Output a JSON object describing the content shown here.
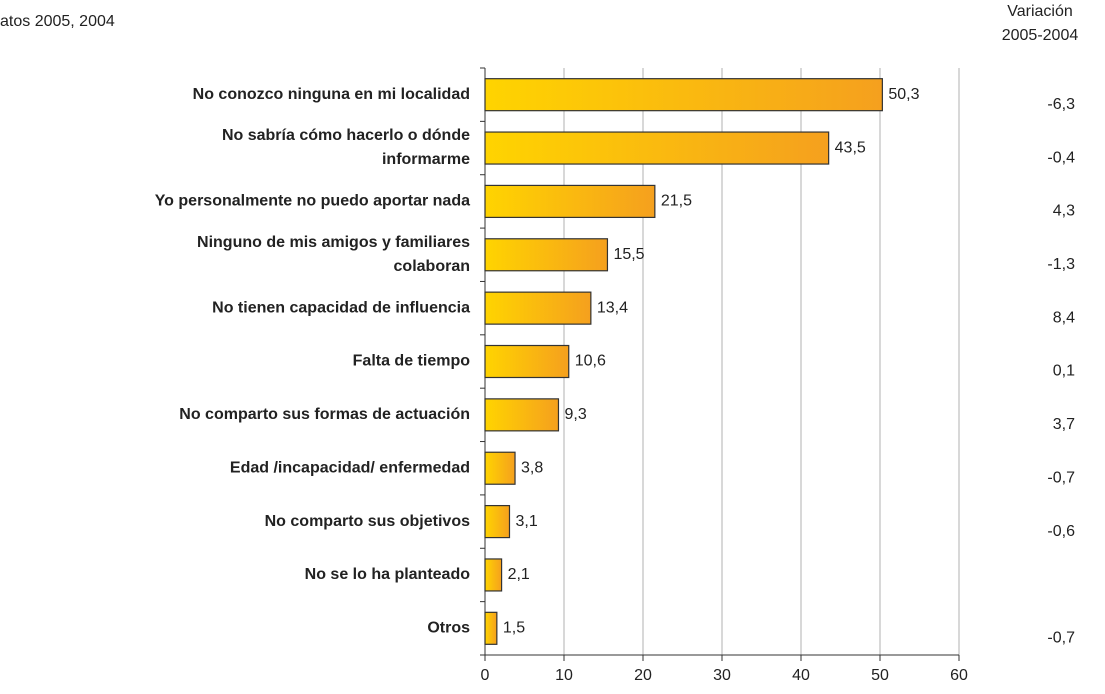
{
  "chart_data": {
    "type": "bar",
    "orientation": "horizontal",
    "subtitle": "atos 2005, 2004",
    "categories": [
      "No conozco ninguna en mi localidad",
      "No sabría cómo hacerlo o dónde\ninformarme",
      "Yo personalmente no puedo aportar nada",
      "Ninguno de mis amigos y familiares\ncolaboran",
      "No tienen capacidad de influencia",
      "Falta de tiempo",
      "No comparto sus formas de actuación",
      "Edad /incapacidad/ enfermedad",
      "No comparto sus objetivos",
      "No se lo ha planteado",
      "Otros"
    ],
    "values": [
      50.3,
      43.5,
      21.5,
      15.5,
      13.4,
      10.6,
      9.3,
      3.8,
      3.1,
      2.1,
      1.5
    ],
    "value_labels": [
      "50,3",
      "43,5",
      "21,5",
      "15,5",
      "13,4",
      "10,6",
      "9,3",
      "3,8",
      "3,1",
      "2,1",
      "1,5"
    ],
    "color": {
      "start": "#FFD400",
      "end": "#F5A01E"
    },
    "xlim": [
      0,
      60
    ],
    "xticks": [
      0,
      10,
      20,
      30,
      40,
      50,
      60
    ],
    "grid": true,
    "variation": {
      "title": "Variación\n2005-2004",
      "values": [
        -6.3,
        -0.4,
        4.3,
        -1.3,
        8.4,
        0.1,
        3.7,
        -0.7,
        -0.6,
        null,
        -0.7
      ],
      "value_labels": [
        "-6,3",
        "-0,4",
        "4,3",
        "-1,3",
        "8,4",
        "0,1",
        "3,7",
        "-0,7",
        "-0,6",
        null,
        "-0,7"
      ]
    }
  }
}
